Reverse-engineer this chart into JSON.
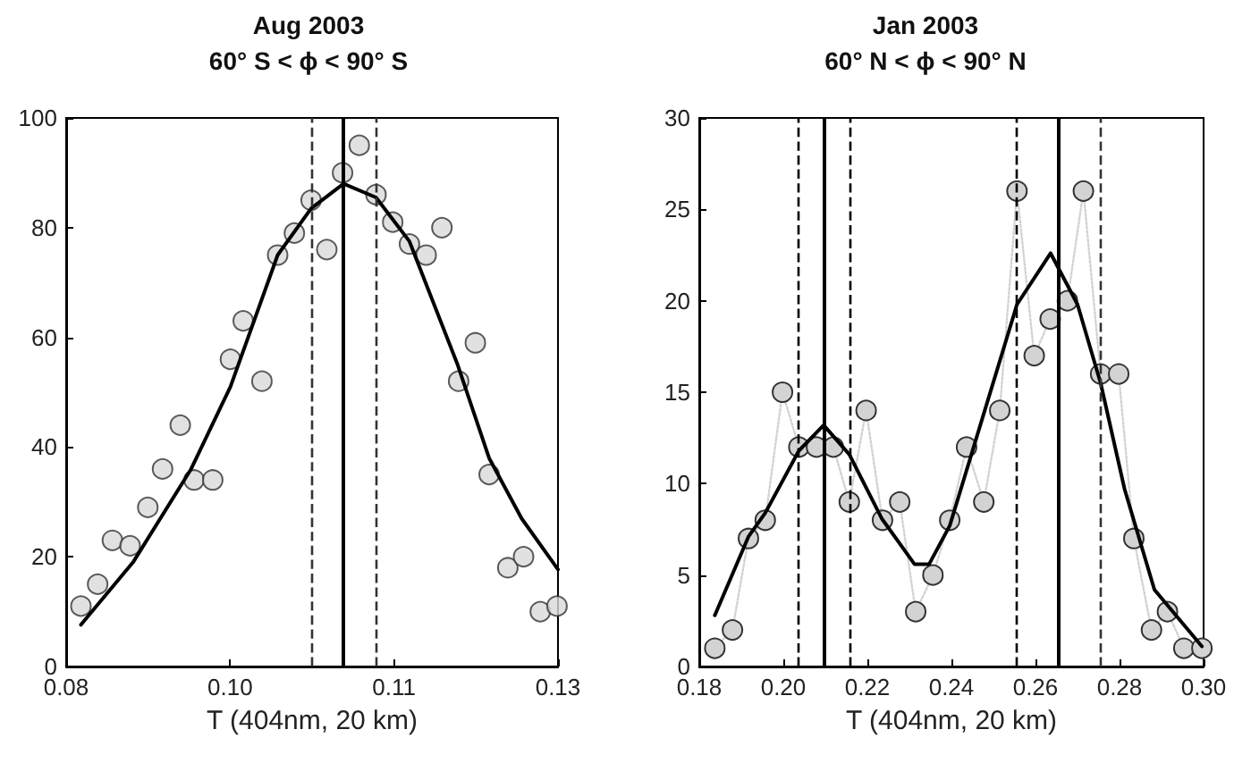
{
  "chart_data": [
    {
      "type": "scatter",
      "title": "Aug 2003",
      "subtitle": "60° S < ϕ < 90° S",
      "xlabel": "T (404nm, 20 km)",
      "xlim": [
        0.08,
        0.13
      ],
      "xticks": [
        {
          "value": 0.08,
          "label": "0.08"
        },
        {
          "value": 0.09667,
          "label": "0.10"
        },
        {
          "value": 0.11333,
          "label": "0.11"
        },
        {
          "value": 0.13,
          "label": "0.13"
        }
      ],
      "ylim": [
        0,
        100
      ],
      "yticks": [
        0,
        20,
        40,
        60,
        80,
        100
      ],
      "series": [
        {
          "type": "scatter",
          "marker": "circle",
          "color": "#d9d9d9",
          "x": [
            0.0815,
            0.0832,
            0.0847,
            0.0865,
            0.0883,
            0.0898,
            0.0916,
            0.093,
            0.0949,
            0.0967,
            0.098,
            0.0999,
            0.1015,
            0.1032,
            0.1049,
            0.1065,
            0.1081,
            0.1098,
            0.1115,
            0.1132,
            0.1149,
            0.1166,
            0.1182,
            0.1199,
            0.1216,
            0.123,
            0.1249,
            0.1265,
            0.1282,
            0.1299
          ],
          "values": [
            11,
            15,
            23,
            22,
            29,
            36,
            44,
            34,
            34,
            56,
            63,
            52,
            75,
            79,
            85,
            76,
            90,
            95,
            86,
            81,
            77,
            75,
            80,
            52,
            59,
            35,
            18,
            20,
            10,
            11
          ]
        },
        {
          "type": "line",
          "marker": "none",
          "line_style": "solid",
          "color": "#000000",
          "x": [
            0.0815,
            0.0868,
            0.0927,
            0.0967,
            0.1015,
            0.1049,
            0.1082,
            0.1115,
            0.1149,
            0.1198,
            0.123,
            0.1263,
            0.13
          ],
          "values": [
            7.6,
            19,
            36,
            51,
            75,
            83.5,
            88,
            85.5,
            77.5,
            55,
            38,
            27,
            17.7
          ]
        }
      ],
      "ref_lines": [
        {
          "axis": "x",
          "value": 0.1049,
          "line_style": "dashed",
          "color": "#333333"
        },
        {
          "axis": "x",
          "value": 0.1082,
          "line_style": "solid",
          "color": "#000000"
        },
        {
          "axis": "x",
          "value": 0.1115,
          "line_style": "dashed",
          "color": "#333333"
        }
      ]
    },
    {
      "type": "scatter",
      "title": "Jan 2003",
      "subtitle": "60° N < ϕ < 90° N",
      "xlabel": "T (404nm, 20 km)",
      "xlim": [
        0.18,
        0.3
      ],
      "xticks": [
        {
          "value": 0.18,
          "label": "0.18"
        },
        {
          "value": 0.2,
          "label": "0.20"
        },
        {
          "value": 0.22,
          "label": "0.22"
        },
        {
          "value": 0.24,
          "label": "0.24"
        },
        {
          "value": 0.26,
          "label": "0.26"
        },
        {
          "value": 0.28,
          "label": "0.28"
        },
        {
          "value": 0.3,
          "label": "0.30"
        }
      ],
      "ylim": [
        0,
        30
      ],
      "yticks": [
        0,
        5,
        10,
        15,
        20,
        25,
        30
      ],
      "series": [
        {
          "type": "line",
          "marker": "circle",
          "line_style": "dotted",
          "color": "#d3d3d3",
          "x": [
            0.1837,
            0.1879,
            0.1917,
            0.1957,
            0.1998,
            0.2037,
            0.2079,
            0.2119,
            0.2157,
            0.2197,
            0.2236,
            0.2277,
            0.2315,
            0.2356,
            0.2396,
            0.2436,
            0.2477,
            0.2515,
            0.2556,
            0.2597,
            0.2635,
            0.2676,
            0.2714,
            0.2755,
            0.2798,
            0.2834,
            0.2876,
            0.2914,
            0.2953,
            0.2996
          ],
          "values": [
            1,
            2,
            7,
            8,
            15,
            12,
            12,
            12,
            9,
            14,
            8,
            9,
            3,
            5,
            8,
            12,
            9,
            14,
            26,
            17,
            19,
            20,
            26,
            16,
            16,
            7,
            2,
            3,
            1,
            1
          ]
        },
        {
          "type": "line",
          "marker": "none",
          "line_style": "solid",
          "color": "#000000",
          "x": [
            0.1837,
            0.1917,
            0.1957,
            0.2037,
            0.2096,
            0.2157,
            0.2234,
            0.2312,
            0.2347,
            0.2396,
            0.2474,
            0.2556,
            0.2636,
            0.27,
            0.2755,
            0.2812,
            0.2883,
            0.2996
          ],
          "values": [
            2.8,
            7.1,
            8.4,
            11.8,
            13.2,
            11.6,
            8.1,
            5.6,
            5.6,
            7.7,
            13.6,
            19.8,
            22.6,
            19.8,
            15.5,
            9.7,
            4.2,
            1.1
          ]
        }
      ],
      "ref_lines": [
        {
          "axis": "x",
          "value": 0.2037,
          "line_style": "dashed",
          "color": "#000000"
        },
        {
          "axis": "x",
          "value": 0.2096,
          "line_style": "solid",
          "color": "#000000"
        },
        {
          "axis": "x",
          "value": 0.2157,
          "line_style": "dashed",
          "color": "#000000"
        },
        {
          "axis": "x",
          "value": 0.2556,
          "line_style": "dashed",
          "color": "#000000"
        },
        {
          "axis": "x",
          "value": 0.2654,
          "line_style": "solid",
          "color": "#000000"
        },
        {
          "axis": "x",
          "value": 0.2755,
          "line_style": "dashed",
          "color": "#333333"
        }
      ]
    }
  ]
}
